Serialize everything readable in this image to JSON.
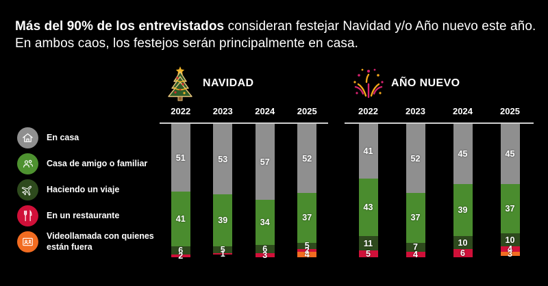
{
  "background": "#000000",
  "title": {
    "bold": "Más del 90% de los entrevistados",
    "rest": " consideran festejar Navidad y/o Año nuevo este año. En ambos caos, los festejos serán principalmente en casa."
  },
  "legend": {
    "position": "left",
    "items": [
      {
        "label": "En casa",
        "icon": "house-icon",
        "color": "#8f8f8f"
      },
      {
        "label": "Casa de amigo o familiar",
        "icon": "people-icon",
        "color": "#4e9230"
      },
      {
        "label": "Haciendo un viaje",
        "icon": "airplane-icon",
        "color": "#2e4a1d"
      },
      {
        "label": "En un restaurante",
        "icon": "restaurant-icon",
        "color": "#d01039"
      },
      {
        "label": "Videollamada con quienes están fuera",
        "icon": "videocall-icon",
        "color": "#f26c21"
      }
    ]
  },
  "sections": [
    {
      "title": "NAVIDAD",
      "icon": "christmas-tree-icon"
    },
    {
      "title": "AÑO NUEVO",
      "icon": "fireworks-icon"
    }
  ],
  "chart_data": [
    {
      "type": "bar",
      "stacked": true,
      "title": "NAVIDAD",
      "unit": "percent",
      "ylim": [
        0,
        100
      ],
      "grid": false,
      "categories": [
        "2022",
        "2023",
        "2024",
        "2025"
      ],
      "series": [
        {
          "key": "en-casa",
          "name": "En casa",
          "color": "#8f8f8f",
          "values": [
            51,
            53,
            57,
            52
          ]
        },
        {
          "key": "casa-amigo",
          "name": "Casa de amigo o familiar",
          "color": "#4a8c2e",
          "values": [
            41,
            39,
            34,
            37
          ]
        },
        {
          "key": "viaje",
          "name": "Haciendo un viaje",
          "color": "#2e4a1d",
          "values": [
            6,
            5,
            6,
            5
          ]
        },
        {
          "key": "restaurante",
          "name": "En un restaurante",
          "color": "#d01039",
          "values": [
            2,
            1,
            3,
            2
          ]
        },
        {
          "key": "videollamada",
          "name": "Videollamada con quienes están fuera",
          "color": "#f26c21",
          "values": [
            0,
            0,
            0,
            4
          ]
        }
      ]
    },
    {
      "type": "bar",
      "stacked": true,
      "title": "AÑO NUEVO",
      "unit": "percent",
      "ylim": [
        0,
        100
      ],
      "grid": false,
      "categories": [
        "2022",
        "2023",
        "2024",
        "2025"
      ],
      "series": [
        {
          "key": "en-casa",
          "name": "En casa",
          "color": "#8f8f8f",
          "values": [
            41,
            52,
            45,
            45
          ]
        },
        {
          "key": "casa-amigo",
          "name": "Casa de amigo o familiar",
          "color": "#4a8c2e",
          "values": [
            43,
            37,
            39,
            37
          ]
        },
        {
          "key": "viaje",
          "name": "Haciendo un viaje",
          "color": "#2e4a1d",
          "values": [
            11,
            7,
            10,
            10
          ]
        },
        {
          "key": "restaurante",
          "name": "En un restaurante",
          "color": "#d01039",
          "values": [
            5,
            4,
            6,
            4
          ]
        },
        {
          "key": "videollamada",
          "name": "Videollamada con quienes están fuera",
          "color": "#f26c21",
          "values": [
            0,
            0,
            0,
            3
          ]
        }
      ]
    }
  ]
}
